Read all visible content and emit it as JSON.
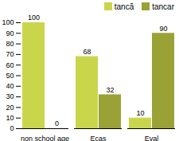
{
  "chart_data": {
    "type": "bar",
    "categories": [
      "non school age",
      "Ecas",
      "Eval"
    ],
    "series": [
      {
        "name": "tancă",
        "color": "#c9d64c",
        "values": [
          100,
          68,
          10
        ]
      },
      {
        "name": "tancar",
        "color": "#9aa236",
        "values": [
          0,
          32,
          90
        ]
      }
    ],
    "ylim": [
      0,
      100
    ],
    "yticks": [
      0,
      10,
      20,
      30,
      40,
      50,
      60,
      70,
      80,
      90,
      100
    ],
    "grid": false,
    "data_labels": true,
    "legend": "top-right"
  }
}
